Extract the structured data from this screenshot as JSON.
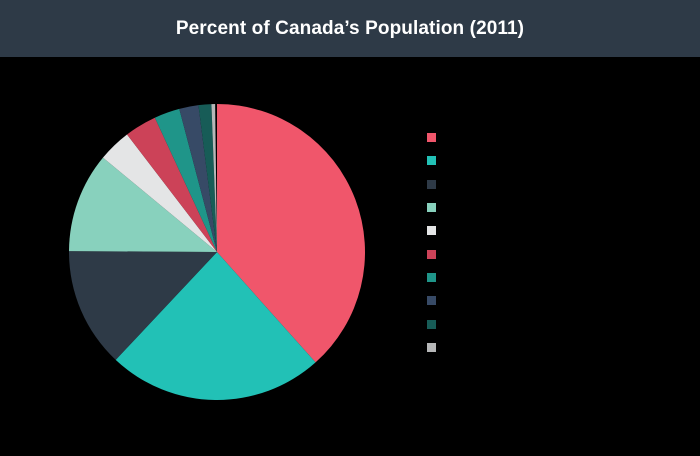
{
  "header": {
    "title": "Percent of Canada’s Population (2011)"
  },
  "chart_data": {
    "type": "pie",
    "title": "Percent of Canada’s Population (2011)",
    "categories": [
      "",
      "",
      "",
      "",
      "",
      "",
      "",
      "",
      "",
      ""
    ],
    "values": [
      38.4,
      23.6,
      13.1,
      10.9,
      3.6,
      3.5,
      2.8,
      2.1,
      1.4,
      0.4
    ],
    "colors": [
      "#f0566b",
      "#22c1b6",
      "#2e3a47",
      "#88d1bd",
      "#e4e5e6",
      "#cc4258",
      "#1f9589",
      "#374a66",
      "#175c57",
      "#b6b7b8"
    ],
    "start_angle_deg": 0,
    "direction": "clockwise",
    "center": [
      217,
      252
    ],
    "radius": 148,
    "legend_position": "right",
    "legend_labels_visible": false
  },
  "legend": {
    "items": [
      {
        "label": ""
      },
      {
        "label": ""
      },
      {
        "label": ""
      },
      {
        "label": ""
      },
      {
        "label": ""
      },
      {
        "label": ""
      },
      {
        "label": ""
      },
      {
        "label": ""
      },
      {
        "label": ""
      },
      {
        "label": ""
      }
    ]
  }
}
